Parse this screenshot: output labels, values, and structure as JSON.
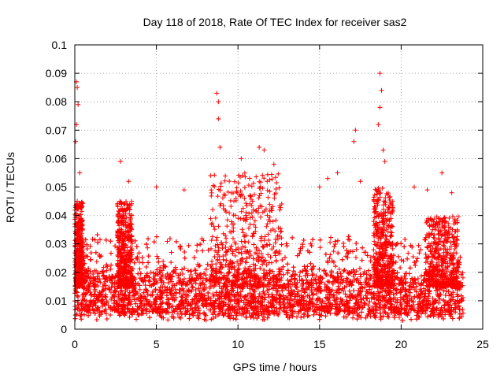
{
  "chart_data": {
    "type": "scatter",
    "title": "Day 118 of 2018, Rate Of TEC Index for receiver sas2",
    "xlabel": "GPS time / hours",
    "ylabel": "ROTI / TECUs",
    "xlim": [
      0,
      25
    ],
    "ylim": [
      0,
      0.1
    ],
    "x_ticks": [
      "0",
      "5",
      "10",
      "15",
      "20",
      "25"
    ],
    "y_ticks": [
      "0",
      "0.01",
      "0.02",
      "0.03",
      "0.04",
      "0.05",
      "0.06",
      "0.07",
      "0.08",
      "0.09",
      "0.1"
    ],
    "grid": true,
    "marker": "+",
    "color": "#ff0000",
    "x_range_of_data": [
      0,
      23.8
    ],
    "baseline_band": [
      0.005,
      0.02
    ],
    "notable_points": [
      {
        "x": 0.1,
        "y": 0.087
      },
      {
        "x": 0.15,
        "y": 0.085
      },
      {
        "x": 0.2,
        "y": 0.079
      },
      {
        "x": 0.1,
        "y": 0.072
      },
      {
        "x": 0.05,
        "y": 0.066
      },
      {
        "x": 0.3,
        "y": 0.055
      },
      {
        "x": 2.8,
        "y": 0.059
      },
      {
        "x": 3.3,
        "y": 0.052
      },
      {
        "x": 5.0,
        "y": 0.05
      },
      {
        "x": 6.7,
        "y": 0.049
      },
      {
        "x": 8.7,
        "y": 0.083
      },
      {
        "x": 8.8,
        "y": 0.08
      },
      {
        "x": 8.8,
        "y": 0.074
      },
      {
        "x": 8.9,
        "y": 0.064
      },
      {
        "x": 10.2,
        "y": 0.06
      },
      {
        "x": 11.3,
        "y": 0.064
      },
      {
        "x": 11.6,
        "y": 0.063
      },
      {
        "x": 12.2,
        "y": 0.058
      },
      {
        "x": 15.0,
        "y": 0.05
      },
      {
        "x": 15.5,
        "y": 0.053
      },
      {
        "x": 16.1,
        "y": 0.055
      },
      {
        "x": 17.2,
        "y": 0.07
      },
      {
        "x": 17.1,
        "y": 0.066
      },
      {
        "x": 17.5,
        "y": 0.052
      },
      {
        "x": 18.7,
        "y": 0.09
      },
      {
        "x": 18.8,
        "y": 0.084
      },
      {
        "x": 18.7,
        "y": 0.078
      },
      {
        "x": 18.6,
        "y": 0.072
      },
      {
        "x": 18.9,
        "y": 0.063
      },
      {
        "x": 19.0,
        "y": 0.059
      },
      {
        "x": 20.8,
        "y": 0.05
      },
      {
        "x": 21.6,
        "y": 0.049
      },
      {
        "x": 22.5,
        "y": 0.055
      },
      {
        "x": 23.1,
        "y": 0.048
      }
    ],
    "active_windows": [
      {
        "start": 0.0,
        "end": 0.5,
        "peak": 0.045
      },
      {
        "start": 2.6,
        "end": 3.5,
        "peak": 0.045
      },
      {
        "start": 8.3,
        "end": 12.7,
        "peak": 0.055
      },
      {
        "start": 18.3,
        "end": 19.5,
        "peak": 0.05
      },
      {
        "start": 21.5,
        "end": 23.5,
        "peak": 0.04
      }
    ]
  }
}
